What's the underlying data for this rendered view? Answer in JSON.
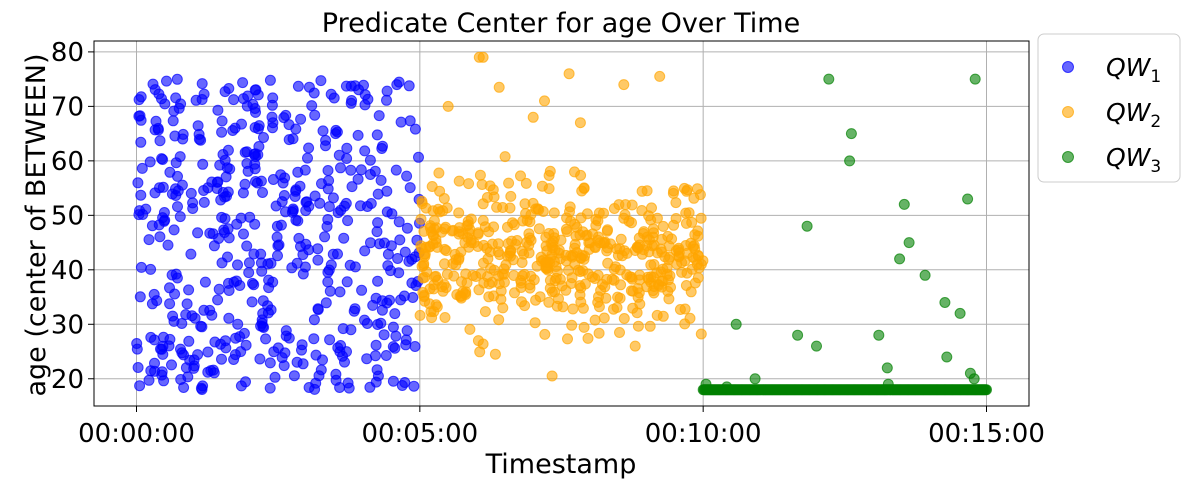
{
  "chart_data": {
    "type": "scatter",
    "title": "Predicate Center for age Over Time",
    "xlabel": "Timestamp",
    "ylabel": "age (center of BETWEEN)",
    "x_unit": "seconds",
    "xlim": [
      -45,
      945
    ],
    "ylim": [
      15,
      82
    ],
    "x_ticks": [
      {
        "value": 0,
        "label": "00:00:00"
      },
      {
        "value": 300,
        "label": "00:05:00"
      },
      {
        "value": 600,
        "label": "00:10:00"
      },
      {
        "value": 900,
        "label": "00:15:00"
      }
    ],
    "y_ticks": [
      20,
      30,
      40,
      50,
      60,
      70,
      80
    ],
    "grid": true,
    "legend_position": "outside-right",
    "series": [
      {
        "name": "QW",
        "name_sub": "1",
        "color": "#0000ff",
        "distribution": {
          "x_range": [
            0,
            300
          ],
          "y_range": [
            18,
            75
          ],
          "count": 520,
          "seed": 11
        }
      },
      {
        "name": "QW",
        "name_sub": "2",
        "color": "#ffa500",
        "distribution": {
          "x_range": [
            300,
            600
          ],
          "y_range": [
            24,
            62
          ],
          "count": 520,
          "seed": 23
        },
        "points": [
          {
            "x": 363,
            "y": 79
          },
          {
            "x": 367,
            "y": 79
          },
          {
            "x": 458,
            "y": 76
          },
          {
            "x": 516,
            "y": 74
          },
          {
            "x": 554,
            "y": 75.5
          },
          {
            "x": 384,
            "y": 73.5
          },
          {
            "x": 432,
            "y": 71
          },
          {
            "x": 420,
            "y": 68
          },
          {
            "x": 330,
            "y": 70
          },
          {
            "x": 470,
            "y": 67
          },
          {
            "x": 440,
            "y": 20.5
          },
          {
            "x": 362,
            "y": 27
          },
          {
            "x": 380,
            "y": 24.5
          },
          {
            "x": 528,
            "y": 26
          }
        ]
      },
      {
        "name": "QW",
        "name_sub": "3",
        "color": "#008000",
        "baseline": {
          "x_range": [
            600,
            900
          ],
          "y": 18,
          "count": 320
        },
        "points": [
          {
            "x": 603,
            "y": 19
          },
          {
            "x": 625,
            "y": 18.5
          },
          {
            "x": 635,
            "y": 30
          },
          {
            "x": 655,
            "y": 20
          },
          {
            "x": 700,
            "y": 28
          },
          {
            "x": 710,
            "y": 48
          },
          {
            "x": 720,
            "y": 26
          },
          {
            "x": 733,
            "y": 75
          },
          {
            "x": 755,
            "y": 60
          },
          {
            "x": 757,
            "y": 65
          },
          {
            "x": 786,
            "y": 28
          },
          {
            "x": 795,
            "y": 22
          },
          {
            "x": 796,
            "y": 19
          },
          {
            "x": 808,
            "y": 42
          },
          {
            "x": 813,
            "y": 52
          },
          {
            "x": 818,
            "y": 45
          },
          {
            "x": 835,
            "y": 39
          },
          {
            "x": 856,
            "y": 34
          },
          {
            "x": 858,
            "y": 24
          },
          {
            "x": 872,
            "y": 32
          },
          {
            "x": 880,
            "y": 53
          },
          {
            "x": 883,
            "y": 21
          },
          {
            "x": 887,
            "y": 20
          },
          {
            "x": 888,
            "y": 75
          }
        ]
      }
    ]
  }
}
